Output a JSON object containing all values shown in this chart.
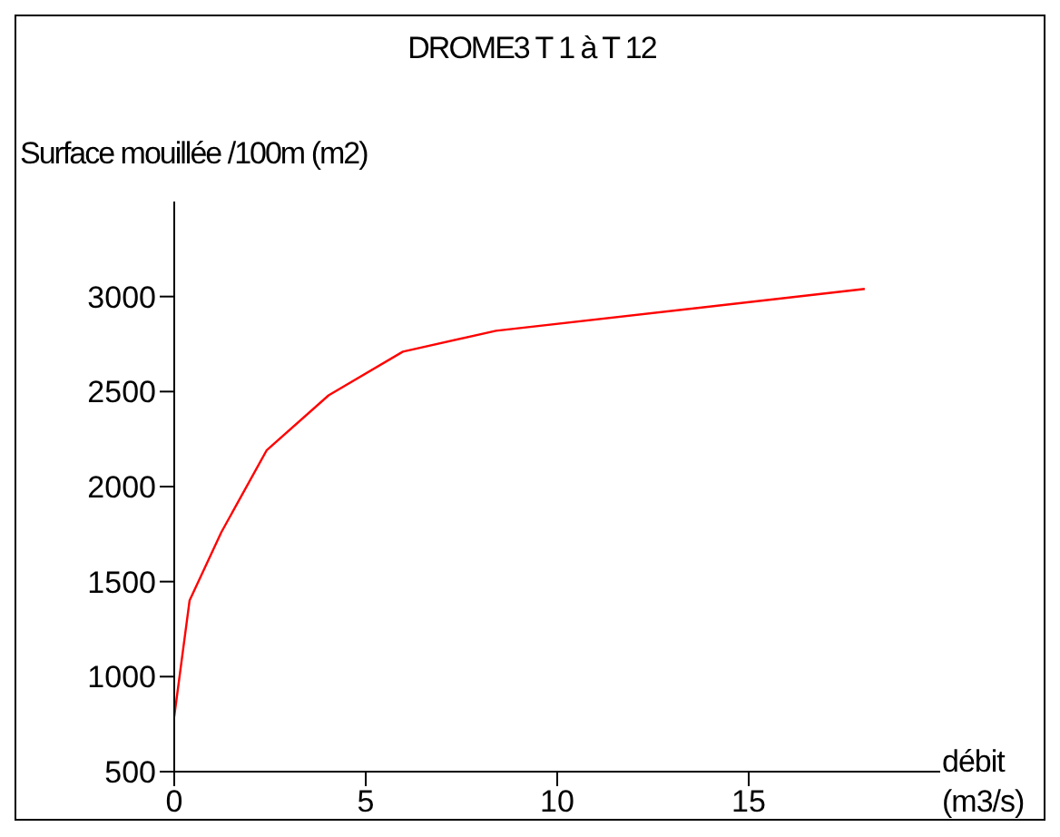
{
  "chart_data": {
    "type": "line",
    "title": "DROME3 T 1 à T 12",
    "ylabel": "Surface mouillée /100m (m2)",
    "xlabel": "débit\n(m3/s)",
    "series": [
      {
        "color": "#ff0000",
        "x": [
          0,
          0.4,
          1.23,
          2.41,
          4.03,
          5.97,
          8.4,
          18.03
        ],
        "values": [
          790,
          1400,
          1760,
          2190,
          2480,
          2710,
          2820,
          3040
        ]
      }
    ],
    "xlim": [
      0,
      20
    ],
    "xticks": [
      0,
      5,
      10,
      15
    ],
    "ylim": [
      500,
      3500
    ],
    "yticks": [
      500,
      1000,
      1500,
      2000,
      2500,
      3000
    ],
    "grid": false,
    "legend": false,
    "marker": "none",
    "line_style": "solid"
  }
}
